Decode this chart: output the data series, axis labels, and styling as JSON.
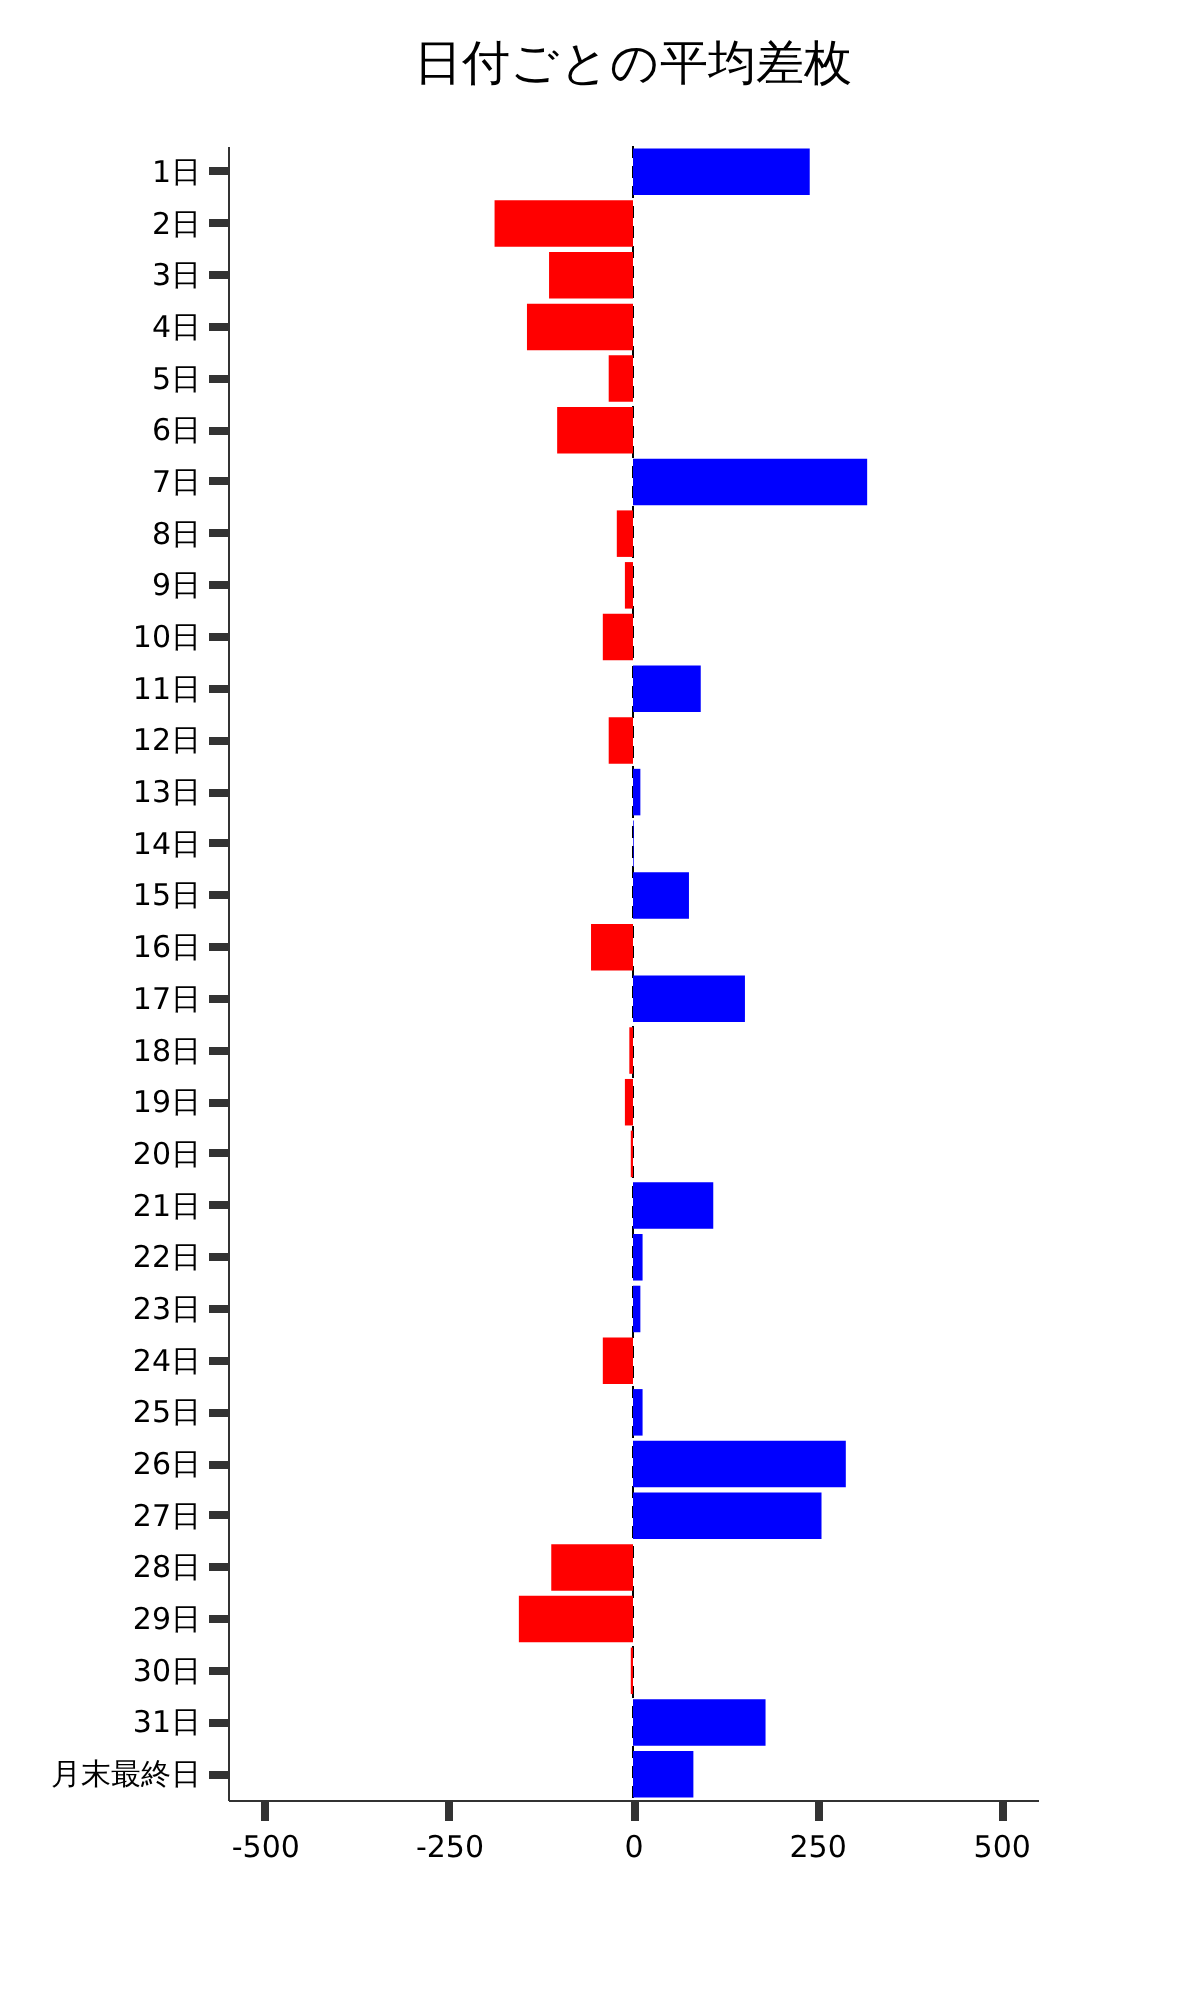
{
  "chart_data": {
    "type": "bar",
    "orientation": "horizontal",
    "title": "日付ごとの平均差枚",
    "categories": [
      "1日",
      "2日",
      "3日",
      "4日",
      "5日",
      "6日",
      "7日",
      "8日",
      "9日",
      "10日",
      "11日",
      "12日",
      "13日",
      "14日",
      "15日",
      "16日",
      "17日",
      "18日",
      "19日",
      "20日",
      "21日",
      "22日",
      "23日",
      "24日",
      "25日",
      "26日",
      "27日",
      "28日",
      "29日",
      "30日",
      "31日",
      "月末最終日"
    ],
    "values": [
      240,
      -188,
      -114,
      -144,
      -33,
      -103,
      318,
      -22,
      -11,
      -41,
      92,
      -33,
      10,
      1,
      76,
      -57,
      152,
      -5,
      -11,
      -3,
      109,
      13,
      10,
      -41,
      13,
      289,
      256,
      -111,
      -155,
      -3,
      180,
      82
    ],
    "colors": [
      "#0000ff",
      "#ff0000",
      "#ff0000",
      "#ff0000",
      "#ff0000",
      "#ff0000",
      "#0000ff",
      "#ff0000",
      "#ff0000",
      "#ff0000",
      "#0000ff",
      "#ff0000",
      "#0000ff",
      "#0000ff",
      "#0000ff",
      "#ff0000",
      "#0000ff",
      "#ff0000",
      "#ff0000",
      "#ff0000",
      "#0000ff",
      "#0000ff",
      "#0000ff",
      "#ff0000",
      "#0000ff",
      "#0000ff",
      "#0000ff",
      "#ff0000",
      "#ff0000",
      "#ff0000",
      "#0000ff",
      "#0000ff"
    ],
    "xlim": [
      -550,
      550
    ],
    "xticks": [
      -500,
      -250,
      0,
      250,
      500
    ],
    "ref_lines": [
      {
        "axis": "x",
        "value": 0,
        "color": "#000000",
        "line_style": "dashed"
      }
    ],
    "grid": false
  }
}
